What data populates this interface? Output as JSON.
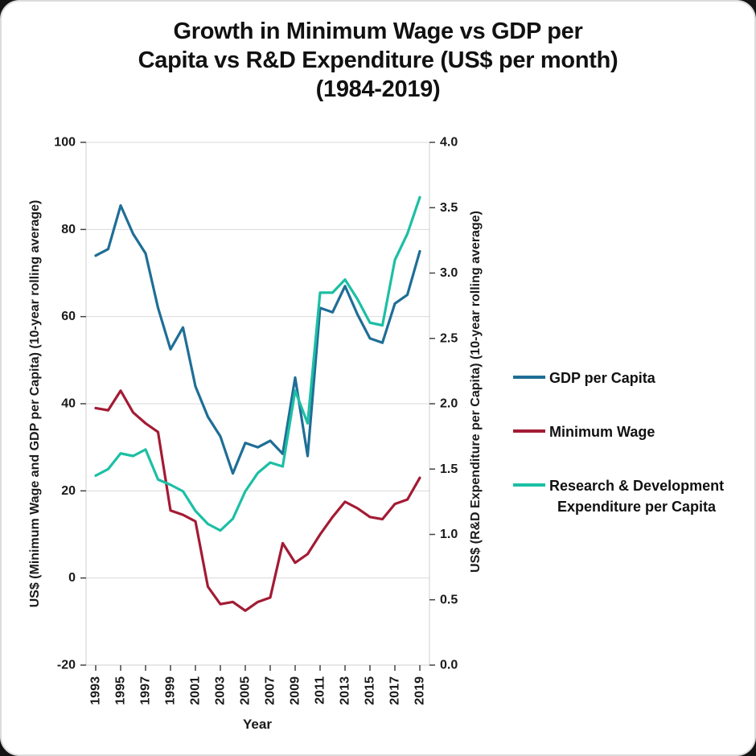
{
  "title": "Growth in Minimum Wage vs GDP per\nCapita vs R&D Expenditure (US$ per month)\n(1984-2019)",
  "axes": {
    "x_label": "Year",
    "y_left_label": "US$ (Minimum Wage and GDP per Capita) (10-year rolling average)",
    "y_right_label": "US$ (R&D Expenditure per Capita) (10-year rolling average)",
    "y_left_ticks": [
      "100",
      "80",
      "60",
      "40",
      "20",
      "0",
      "-20"
    ],
    "y_right_ticks": [
      "4.0",
      "3.5",
      "3.0",
      "2.5",
      "2.0",
      "1.5",
      "1.0",
      "0.5",
      "0.0"
    ],
    "x_ticks": [
      "1993",
      "1995",
      "1997",
      "1999",
      "2001",
      "2003",
      "2005",
      "2007",
      "2009",
      "2011",
      "2013",
      "2015",
      "2017",
      "2019"
    ]
  },
  "legend": [
    {
      "label": "GDP per Capita",
      "color": "#1f6e96"
    },
    {
      "label": "Minimum Wage",
      "color": "#a31b34"
    },
    {
      "label": "Research & Development\nExpenditure per Capita",
      "color": "#1cbfa4"
    }
  ],
  "chart_data": {
    "type": "line",
    "title": "Growth in Minimum Wage vs GDP per Capita vs R&D Expenditure (US$ per month) (1984-2019)",
    "xlabel": "Year",
    "ylabel_left": "US$ (Minimum Wage and GDP per Capita) (10-year rolling average)",
    "ylabel_right": "US$ (R&D Expenditure per Capita) (10-year rolling average)",
    "grid": true,
    "legend_position": "right",
    "y_left_range": [
      -20,
      100
    ],
    "y_right_range": [
      0,
      4
    ],
    "x": [
      1993,
      1994,
      1995,
      1996,
      1997,
      1998,
      1999,
      2000,
      2001,
      2002,
      2003,
      2004,
      2005,
      2006,
      2007,
      2008,
      2009,
      2010,
      2011,
      2012,
      2013,
      2014,
      2015,
      2016,
      2017,
      2018,
      2019
    ],
    "series": [
      {
        "name": "GDP per Capita",
        "axis": "left",
        "color": "#1f6e96",
        "values": [
          74,
          75.5,
          85.5,
          79,
          74.5,
          62,
          52.5,
          57.5,
          44,
          37,
          32.5,
          24,
          31,
          30,
          31.5,
          28.5,
          46,
          28,
          62,
          61,
          67,
          60.5,
          55,
          54,
          63,
          65,
          75
        ]
      },
      {
        "name": "Minimum Wage",
        "axis": "left",
        "color": "#a31b34",
        "values": [
          39,
          38.5,
          43,
          38,
          35.5,
          33.5,
          15.5,
          14.5,
          13,
          -2,
          -6,
          -5.5,
          -7.5,
          -5.5,
          -4.5,
          8,
          3.5,
          5.5,
          10,
          14,
          17.5,
          16,
          14,
          13.5,
          17,
          18,
          23
        ]
      },
      {
        "name": "Research & Development Expenditure per Capita",
        "axis": "right",
        "color": "#1cbfa4",
        "values": [
          1.45,
          1.5,
          1.62,
          1.6,
          1.65,
          1.42,
          1.38,
          1.33,
          1.18,
          1.08,
          1.03,
          1.12,
          1.33,
          1.47,
          1.55,
          1.52,
          2.1,
          1.85,
          2.85,
          2.85,
          2.95,
          2.8,
          2.62,
          2.6,
          3.1,
          3.3,
          3.58
        ]
      }
    ]
  }
}
